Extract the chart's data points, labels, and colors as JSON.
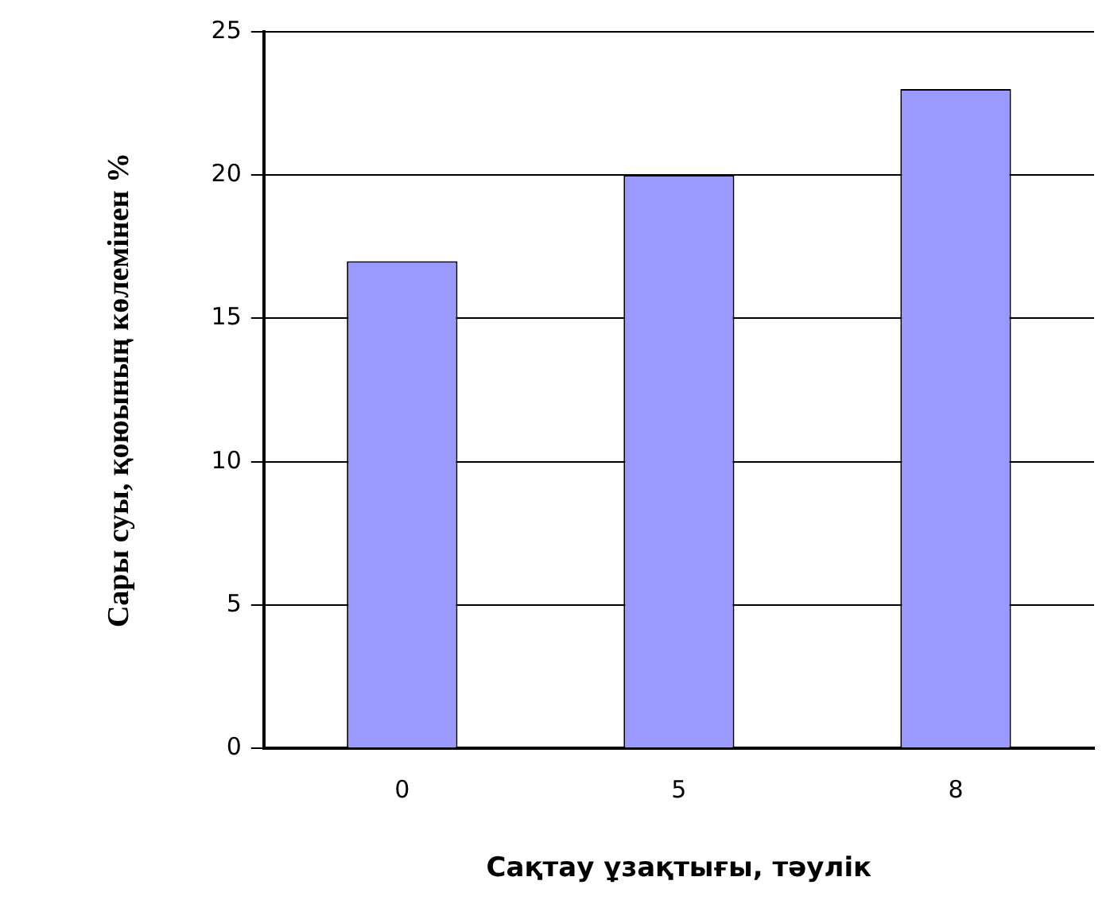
{
  "chart_data": {
    "type": "bar",
    "xlabel": "Сақтау ұзақтығы, тәулік",
    "ylabel": "Сары суы, қоюының көлемінен %",
    "categories": [
      "0",
      "5",
      "8"
    ],
    "values": [
      17,
      20,
      23
    ],
    "color": "#9999ff",
    "ylim": [
      0,
      25
    ],
    "yticks": [
      0,
      5,
      10,
      15,
      20,
      25
    ],
    "grid": "y",
    "legend": false
  }
}
